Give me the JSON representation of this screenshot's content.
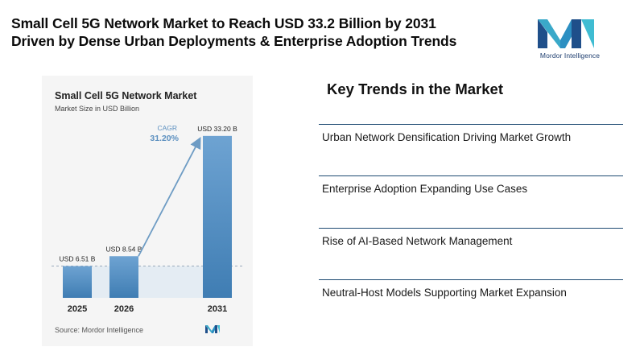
{
  "headline": {
    "line1": "Small Cell 5G Network Market to Reach USD 33.2 Billion by 2031",
    "line2": "Driven by Dense Urban Deployments & Enterprise Adoption Trends"
  },
  "brand": {
    "name": "Mordor Intelligence",
    "logo_icon": "mordor-logo-icon"
  },
  "chart_data": {
    "type": "bar",
    "title": "Small Cell 5G Network Market",
    "subtitle": "Market Size in USD Billion",
    "categories": [
      "2025",
      "2026",
      "2031"
    ],
    "values": [
      6.51,
      8.54,
      33.2
    ],
    "data_labels": [
      "USD 6.51 B",
      "USD 8.54 B",
      "USD 33.20 B"
    ],
    "ylim": [
      0,
      34
    ],
    "cagr_label": "CAGR",
    "cagr_value": "31.20%",
    "grid": false,
    "colors": {
      "bar_top": "#6ea3d2",
      "bar_bottom": "#3f7db3",
      "shade": "#e4ecf3",
      "arrow": "#6e9cc4",
      "cagr": "#5b8fbf"
    },
    "source": "Source: Mordor Intelligence"
  },
  "trends": {
    "title": "Key Trends in the Market",
    "items": [
      "Urban Network Densification Driving Market Growth",
      "Enterprise Adoption Expanding Use Cases",
      "Rise of AI-Based Network Management",
      "Neutral-Host Models Supporting Market Expansion"
    ],
    "divider_color": "#1e4a72"
  }
}
